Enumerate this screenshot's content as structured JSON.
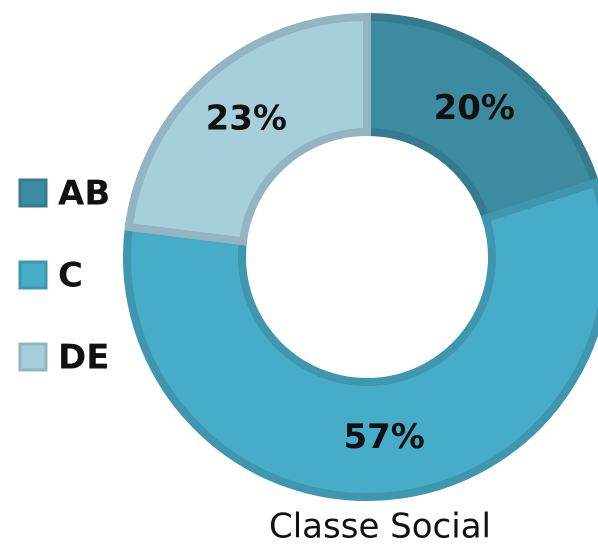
{
  "chart_data": {
    "type": "donut",
    "title": "Classe Social",
    "categories": [
      "AB",
      "C",
      "DE"
    ],
    "values": [
      20,
      57,
      23
    ],
    "value_labels": [
      "20%",
      "57%",
      "23%"
    ],
    "colors": [
      "#3c8ba1",
      "#47acc7",
      "#a7cedb"
    ],
    "legend": "left"
  }
}
